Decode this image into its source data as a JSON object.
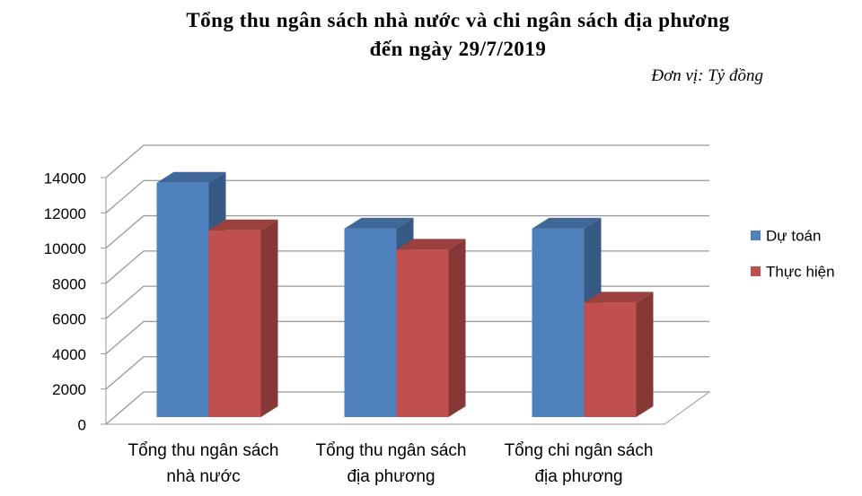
{
  "chart_data": {
    "type": "bar3d",
    "title": "Tổng thu ngân sách nhà nước và chi ngân sách địa phương",
    "subtitle": "đến ngày 29/7/2019",
    "unit": "Đơn vị: Tỷ đồng",
    "categories": [
      "Tổng thu ngân sách nhà nước",
      "Tổng thu ngân sách địa phương",
      "Tổng chi ngân sách địa phương"
    ],
    "series": [
      {
        "name": "Dự toán",
        "color": "#4f81bd",
        "values": [
          13300,
          10700,
          10700
        ]
      },
      {
        "name": "Thực hiện",
        "color": "#c0504d",
        "values": [
          10600,
          9500,
          6500
        ]
      }
    ],
    "ylim": [
      0,
      14000
    ],
    "yticks": [
      0,
      2000,
      4000,
      6000,
      8000,
      10000,
      12000,
      14000
    ],
    "grid": true,
    "legend": "right"
  }
}
